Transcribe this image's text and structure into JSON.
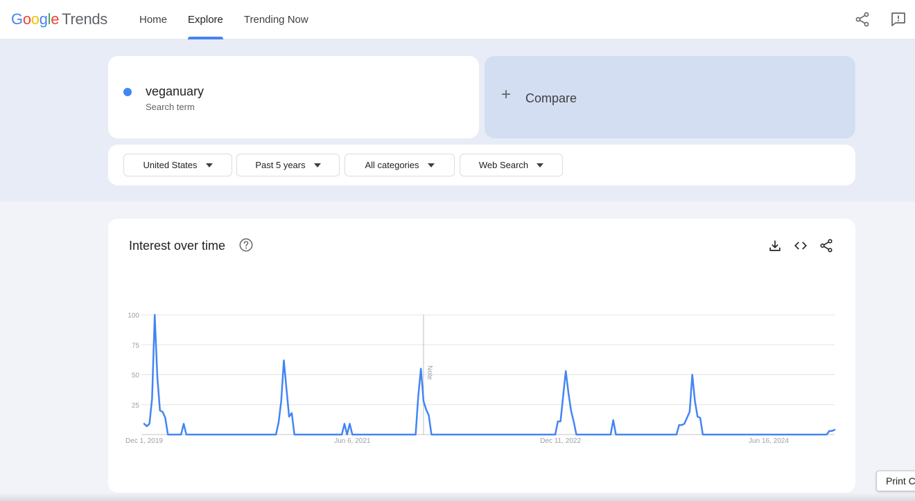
{
  "header": {
    "logo_parts": [
      "G",
      "o",
      "o",
      "g",
      "l",
      "e"
    ],
    "logo_product": "Trends",
    "nav": [
      {
        "label": "Home",
        "active": false
      },
      {
        "label": "Explore",
        "active": true
      },
      {
        "label": "Trending Now",
        "active": false
      }
    ],
    "icons": [
      "share-icon",
      "feedback-icon"
    ]
  },
  "search_term": {
    "name": "veganuary",
    "type_label": "Search term",
    "color": "#4285f4"
  },
  "compare": {
    "plus": "+",
    "label": "Compare"
  },
  "filters": [
    {
      "label": "United States"
    },
    {
      "label": "Past 5 years"
    },
    {
      "label": "All categories"
    },
    {
      "label": "Web Search"
    }
  ],
  "chart_card": {
    "title": "Interest over time",
    "icons": [
      "help-icon",
      "download-icon",
      "embed-icon",
      "share-icon"
    ]
  },
  "chart_data": {
    "type": "line",
    "title": "Interest over time",
    "xlabel": "",
    "ylabel": "",
    "ylim": [
      0,
      100
    ],
    "yticks": [
      25,
      50,
      75,
      100
    ],
    "x_tick_labels": [
      "Dec 1, 2019",
      "Jun 6, 2021",
      "Dec 11, 2022",
      "Jun 16, 2024"
    ],
    "x_tick_index": [
      0,
      79,
      158,
      237
    ],
    "annotation": {
      "label": "Note",
      "index": 106
    },
    "grid": true,
    "legend": "none",
    "series": [
      {
        "color": "#4285f4",
        "values": [
          9,
          7,
          9,
          30,
          100,
          48,
          20,
          19,
          14,
          0,
          0,
          0,
          0,
          0,
          0,
          0,
          0,
          0,
          0,
          0,
          0,
          0,
          0,
          0,
          0,
          0,
          0,
          0,
          0,
          0,
          0,
          0,
          0,
          0,
          0,
          0,
          0,
          0,
          0,
          0,
          0,
          0,
          0,
          0,
          0,
          0,
          0,
          0,
          0,
          0,
          0,
          0,
          0,
          0,
          0,
          0,
          0,
          0,
          0,
          0,
          0,
          0,
          0,
          0,
          0,
          0,
          0,
          0,
          0,
          0,
          0,
          0,
          0,
          0,
          0,
          0,
          0,
          0,
          0,
          0,
          0,
          0,
          0,
          0,
          0,
          0,
          0,
          0,
          0,
          0,
          0,
          0,
          0,
          0,
          0,
          0,
          0,
          0,
          0,
          0,
          0,
          0,
          0,
          0,
          0,
          0,
          0,
          0,
          0,
          0,
          0,
          0,
          0,
          0,
          0,
          0,
          0,
          0,
          0,
          0,
          0,
          0,
          0,
          0,
          0,
          0,
          0,
          0,
          0,
          0,
          0,
          0,
          0,
          0,
          0,
          0,
          0,
          0,
          0,
          0,
          0,
          0,
          0,
          0,
          0,
          0,
          0,
          0,
          0,
          0,
          0,
          0,
          0,
          0,
          0,
          0,
          0,
          0,
          0,
          0,
          0,
          0,
          0,
          0,
          0,
          0,
          0,
          0,
          0,
          0,
          0,
          0,
          0,
          0,
          0,
          0,
          0,
          0,
          0,
          0,
          0,
          0,
          0,
          0,
          0,
          0,
          0,
          0,
          0,
          0,
          0,
          0,
          0,
          0,
          0,
          0,
          0,
          0,
          0,
          0,
          0,
          0,
          0,
          0,
          0,
          0,
          0,
          0,
          0,
          0,
          0,
          0,
          0,
          0,
          0,
          0,
          0,
          0,
          0,
          0,
          0,
          0,
          0,
          0,
          0,
          0,
          0,
          0,
          0,
          0,
          0,
          0,
          0,
          0,
          0,
          0,
          0,
          0,
          0,
          0,
          0,
          0,
          0,
          0,
          0,
          0,
          0,
          0,
          0,
          0,
          0,
          0,
          0,
          0,
          0,
          0,
          0,
          0,
          0,
          0,
          3,
          3,
          4
        ],
        "overrides": [
          [
            15,
            9
          ],
          [
            51,
            10
          ],
          [
            52,
            28
          ],
          [
            53,
            62
          ],
          [
            54,
            38
          ],
          [
            55,
            15
          ],
          [
            56,
            18
          ],
          [
            76,
            9
          ],
          [
            78,
            9
          ],
          [
            104,
            32
          ],
          [
            105,
            55
          ],
          [
            106,
            28
          ],
          [
            107,
            21
          ],
          [
            108,
            16
          ],
          [
            157,
            11
          ],
          [
            158,
            11
          ],
          [
            159,
            32
          ],
          [
            160,
            53
          ],
          [
            161,
            35
          ],
          [
            162,
            20
          ],
          [
            163,
            11
          ],
          [
            178,
            12
          ],
          [
            203,
            8
          ],
          [
            204,
            8
          ],
          [
            205,
            9
          ],
          [
            206,
            14
          ],
          [
            207,
            19
          ],
          [
            208,
            50
          ],
          [
            209,
            28
          ],
          [
            210,
            15
          ],
          [
            211,
            14
          ]
        ]
      }
    ]
  },
  "print_button": {
    "label": "Print C"
  }
}
